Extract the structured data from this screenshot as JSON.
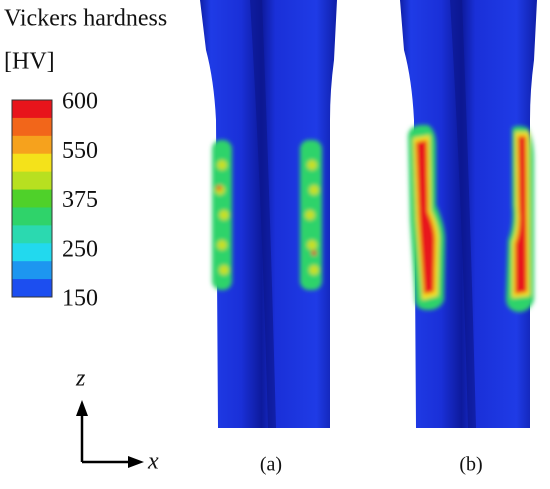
{
  "colorbar": {
    "title": "Vickers hardness",
    "unit": "[HV]",
    "labels": [
      "600",
      "550",
      "375",
      "250",
      "150"
    ],
    "colors": [
      "#e8141b",
      "#f2661a",
      "#f6a21d",
      "#f4e21a",
      "#b8e020",
      "#4fd12a",
      "#2fd36a",
      "#2bd9b0",
      "#22d9ee",
      "#1d96f0",
      "#1c4ef0"
    ]
  },
  "axes": {
    "z": "z",
    "x": "x"
  },
  "panels": [
    {
      "label": "(a)"
    },
    {
      "label": "(b)"
    }
  ]
}
